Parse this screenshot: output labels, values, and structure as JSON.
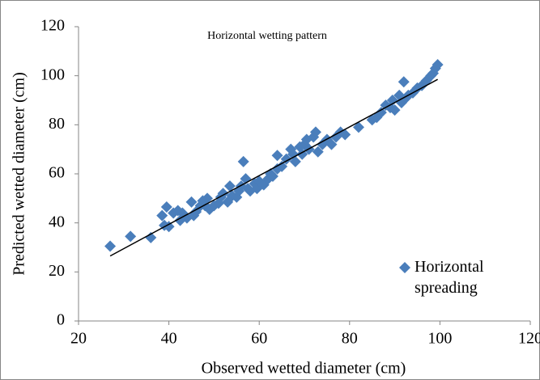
{
  "chart_data": {
    "type": "scatter",
    "title": "Horizontal wetting pattern",
    "x_label": "Observed wetted diameter (cm)",
    "y_label": "Predicted wetted diameter (cm)",
    "xlim": [
      20,
      120
    ],
    "xticks": [
      20,
      40,
      60,
      80,
      100,
      120
    ],
    "ylim": [
      0,
      120
    ],
    "yticks": [
      0,
      20,
      40,
      60,
      80,
      100,
      120
    ],
    "grid": false,
    "legend": "lower right",
    "series": [
      {
        "name": "Horizontal spreading",
        "color": "#4a7ebb",
        "x": [
          27,
          31.5,
          36,
          38.5,
          39,
          39.5,
          40,
          41,
          42,
          42.5,
          43,
          44,
          45,
          45.5,
          46,
          47,
          47.5,
          48,
          48.5,
          49,
          50,
          51,
          51.5,
          52,
          53,
          53.5,
          54,
          55,
          55.5,
          56,
          56.5,
          57,
          57.5,
          58,
          59,
          59.5,
          60,
          61,
          62,
          62.5,
          63,
          64,
          64,
          65,
          66,
          67,
          67.5,
          68,
          69,
          69.5,
          70,
          70.5,
          71,
          72,
          72.5,
          73,
          74,
          75,
          76,
          77,
          78,
          79,
          82,
          85,
          86,
          87,
          88,
          89,
          89.5,
          90,
          91,
          91.5,
          92,
          92.5,
          93,
          94,
          95,
          96,
          97,
          98,
          98.5,
          99,
          99.5
        ],
        "values": [
          30.5,
          34.5,
          34,
          43,
          39,
          46.5,
          38.5,
          44,
          45,
          41,
          44,
          42,
          48.5,
          43,
          44.5,
          47,
          49,
          47,
          50,
          45.5,
          47,
          48,
          50.5,
          52,
          48.5,
          55,
          51,
          50.5,
          53,
          55,
          65,
          58,
          54,
          53,
          56,
          54,
          57,
          55.5,
          58,
          60,
          59,
          62,
          67.5,
          63,
          66,
          70,
          68,
          65,
          71,
          68,
          72,
          74,
          70,
          75,
          77,
          69,
          72,
          74,
          72,
          75,
          77,
          76,
          79,
          82,
          83,
          85,
          88,
          87,
          90,
          86,
          92,
          89,
          97.5,
          91,
          92,
          93,
          95,
          96,
          98,
          100,
          101,
          103,
          104.5
        ]
      }
    ],
    "trendline": {
      "color": "#000000",
      "x": [
        27,
        99.5
      ],
      "values": [
        26.5,
        98.5
      ]
    }
  }
}
